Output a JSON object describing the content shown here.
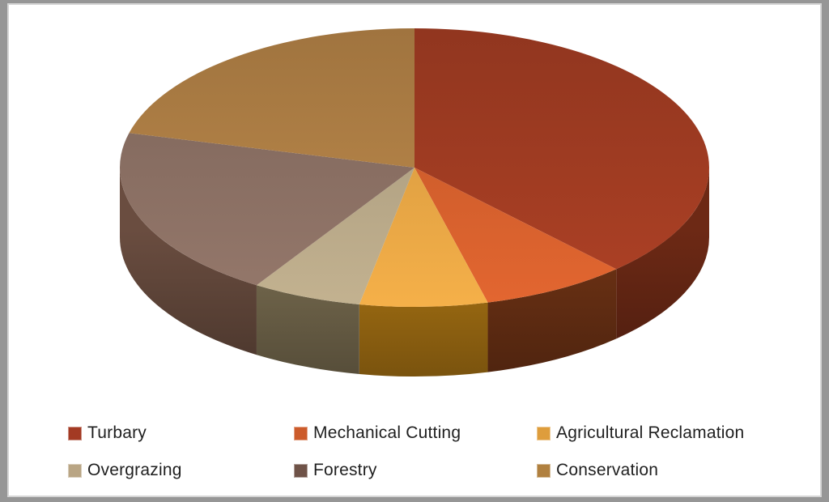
{
  "frame": {
    "outer_color": "#969696",
    "inner_edge_color": "#d5d5d5",
    "canvas_color": "#ffffff"
  },
  "chart_data": {
    "type": "pie",
    "effect": "3d",
    "title": "",
    "start_angle_deg": 0,
    "direction": "clockwise",
    "labels": [
      "Turbary",
      "Mechanical Cutting",
      "Agricultural Reclamation",
      "Overgrazing",
      "Forestry",
      "Conservation"
    ],
    "values": [
      38,
      8,
      7,
      6,
      20,
      21
    ],
    "unit": "percent_estimated",
    "slice_colors_top": [
      "#9E3B22",
      "#CE5D2C",
      "#DFA042",
      "#B1A283",
      "#876D61",
      "#AE7E45"
    ],
    "slice_colors_side": [
      "#612513",
      "#652E13",
      "#9C6B12",
      "#6E6349",
      "#5F4539",
      "#8A6434"
    ],
    "legend": {
      "position": "bottom",
      "rows": 2,
      "columns": 3,
      "text_color": "#1f1f1f",
      "swatch_colors": [
        "#A33A23",
        "#CC5B2B",
        "#DE9D3C",
        "#B9A584",
        "#6F5348",
        "#B0803F"
      ]
    }
  }
}
